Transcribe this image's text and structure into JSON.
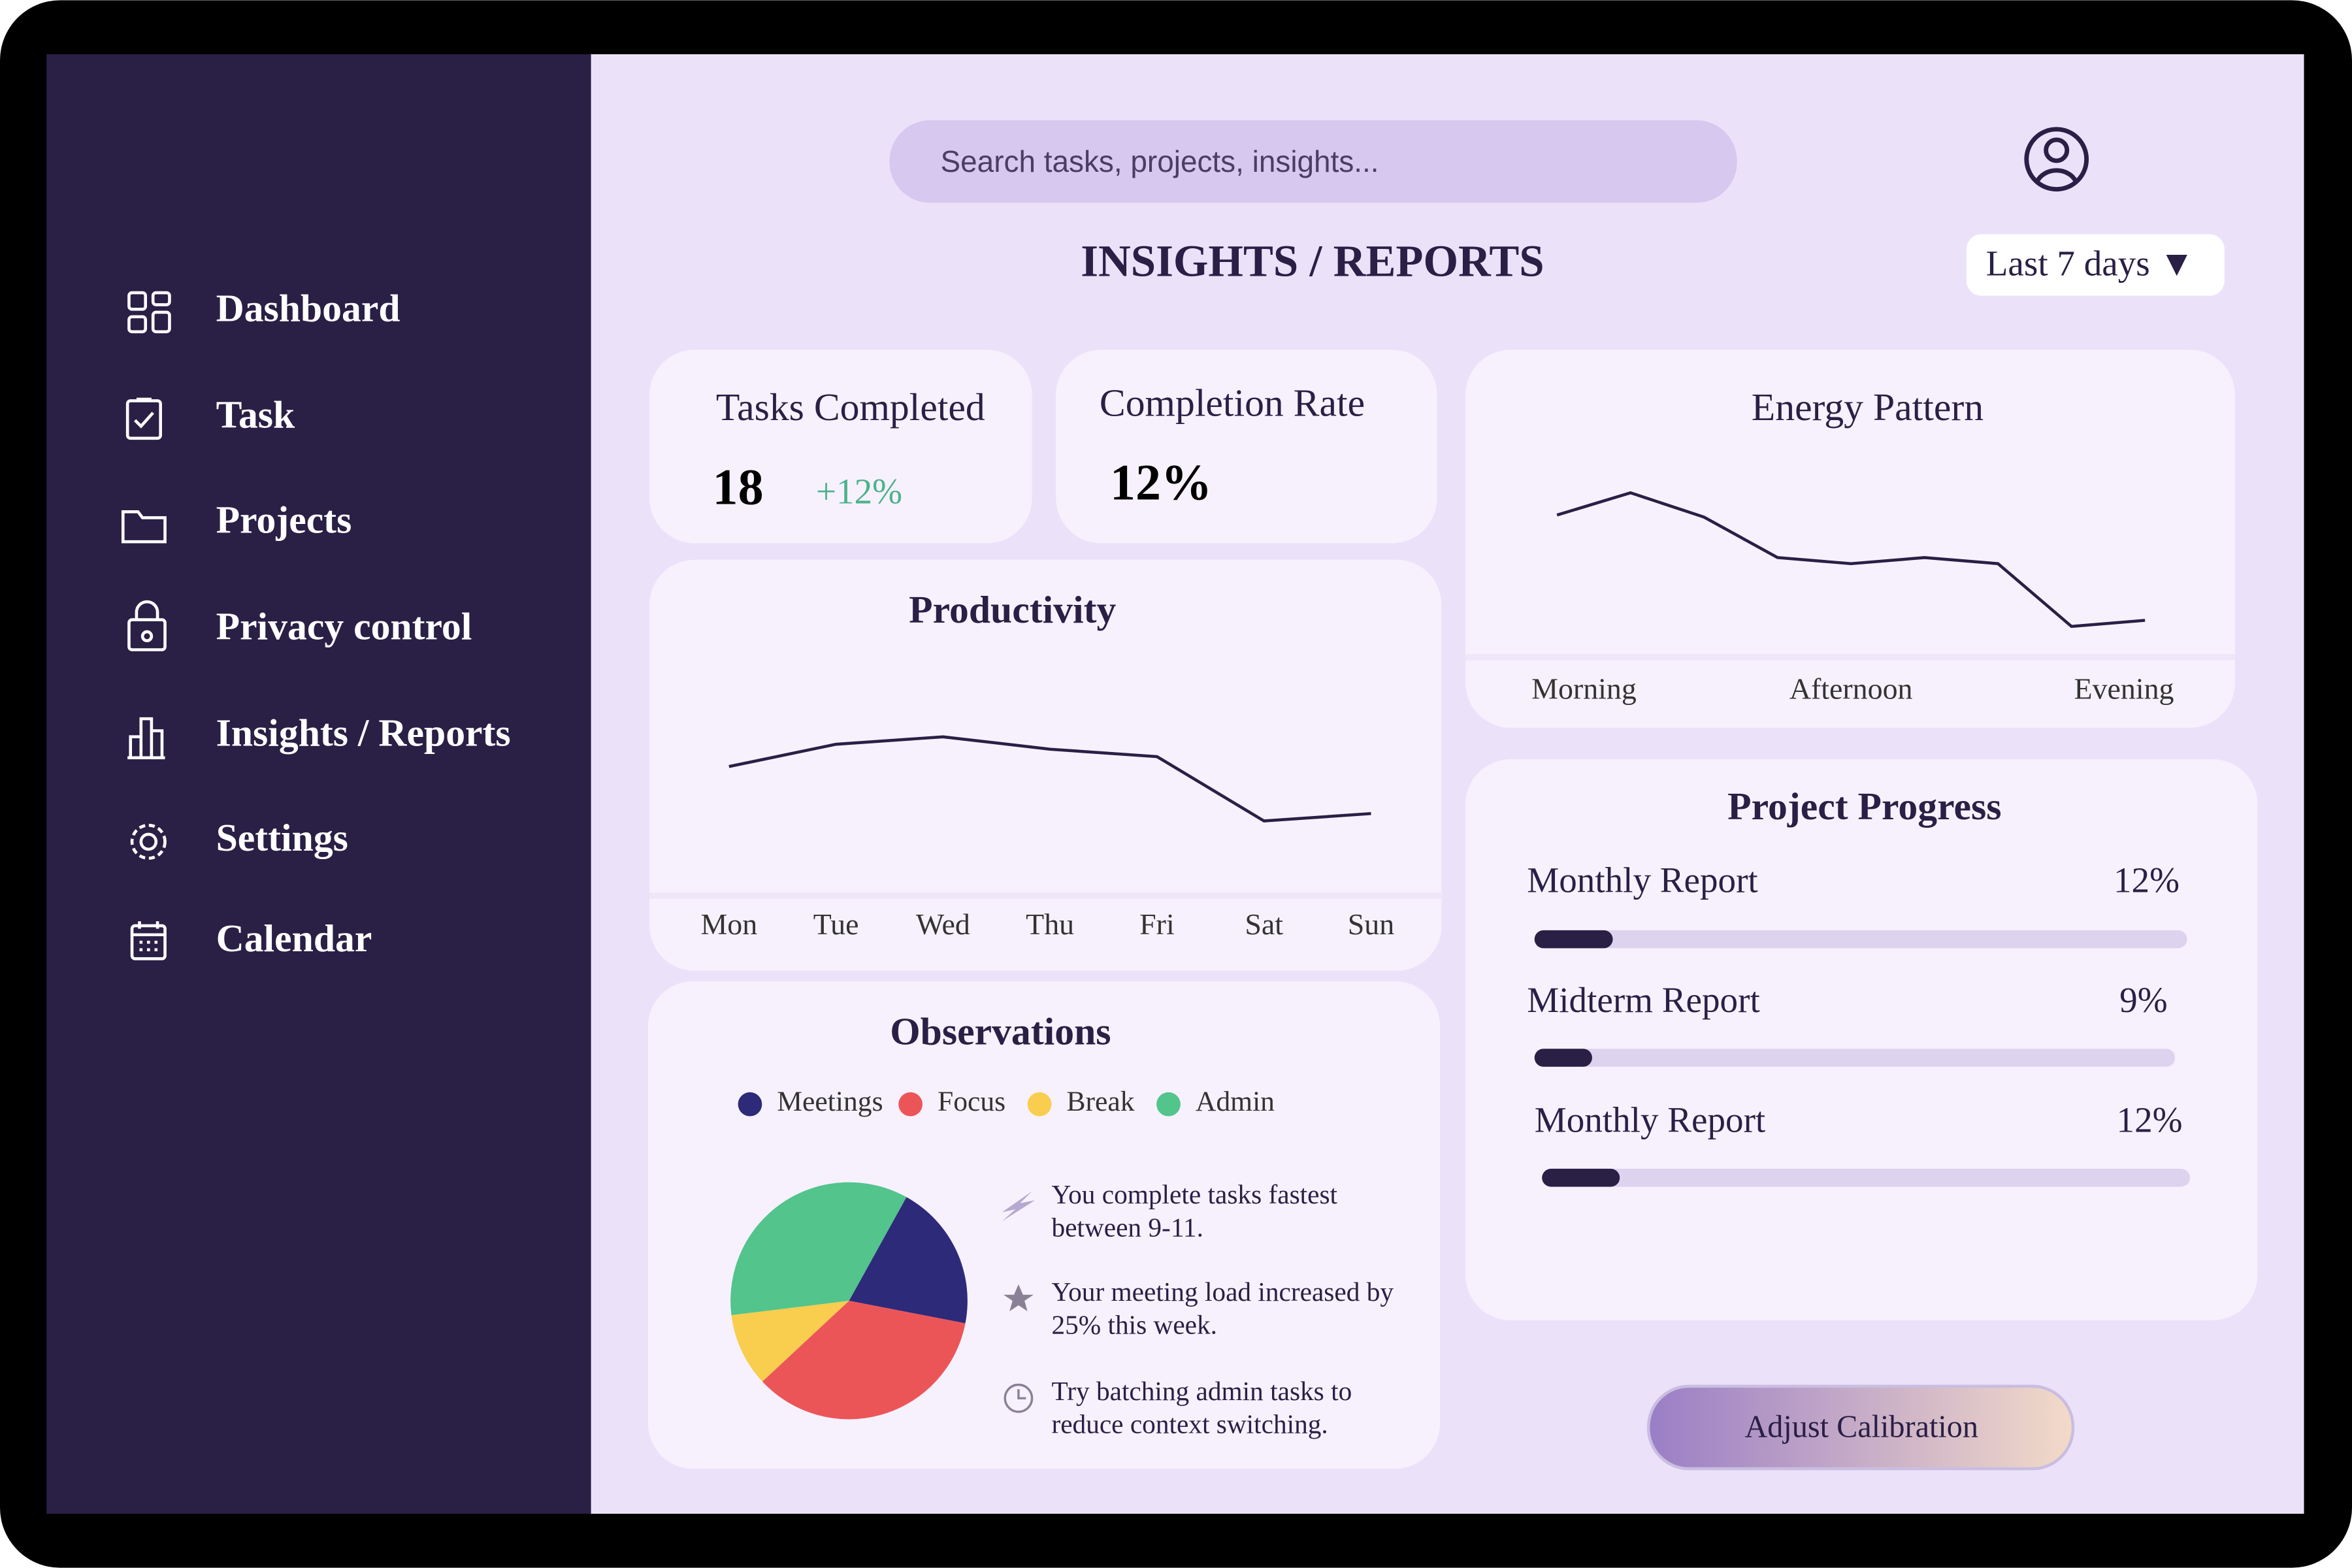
{
  "sidebar": {
    "nav": [
      "Dashboard",
      "Task",
      "Projects",
      "Privacy control",
      "Insights / Reports",
      "Settings",
      "Calendar"
    ]
  },
  "header": {
    "search_placeholder": "Search tasks, projects, insights...",
    "title": "INSIGHTS / REPORTS",
    "range": "Last 7 days ▼"
  },
  "cards": {
    "tasks_completed": {
      "label": "Tasks Completed",
      "value": "18",
      "change": "+12%"
    },
    "completion_rate": {
      "label": "Completion Rate",
      "value": "12%"
    }
  },
  "chart_data": [
    {
      "type": "line",
      "title": "Productivity",
      "categories": [
        "Mon",
        "Tue",
        "Wed",
        "Thu",
        "Fri",
        "Sat",
        "Sun"
      ],
      "values": [
        51,
        60,
        63,
        58,
        55,
        29,
        32
      ],
      "ylim": [
        0,
        100
      ],
      "color": "#2a1f45"
    },
    {
      "type": "line",
      "title": "Energy Pattern",
      "categories": [
        "Morning",
        null,
        null,
        null,
        "Afternoon",
        null,
        null,
        null,
        "Evening"
      ],
      "values": [
        68,
        79,
        67,
        47,
        44,
        47,
        44,
        13,
        16
      ],
      "ylim": [
        0,
        100
      ],
      "color": "#2a1f45"
    },
    {
      "type": "pie",
      "title": "Observations",
      "categories": [
        "Meetings",
        "Focus",
        "Break",
        "Admin"
      ],
      "values": [
        20,
        35,
        10,
        35
      ],
      "colors": [
        "#2e2a7a",
        "#ec5558",
        "#f9cd4e",
        "#52c48c"
      ]
    },
    {
      "type": "progress",
      "title": "Project Progress",
      "categories": [
        "Monthly Report",
        "Midterm Report",
        "Monthly Report"
      ],
      "values": [
        12,
        9,
        12
      ],
      "value_labels": [
        "12%",
        "9%",
        "12%"
      ],
      "xlim": [
        0,
        100
      ],
      "color": "#2a1f45"
    }
  ],
  "observations": {
    "notes": [
      [
        "You complete tasks fastest",
        "between 9-11."
      ],
      [
        "Your meeting load increased by",
        "25% this week."
      ],
      [
        "Try batching admin tasks to",
        "reduce context switching."
      ]
    ]
  },
  "button": "Adjust Calibration"
}
